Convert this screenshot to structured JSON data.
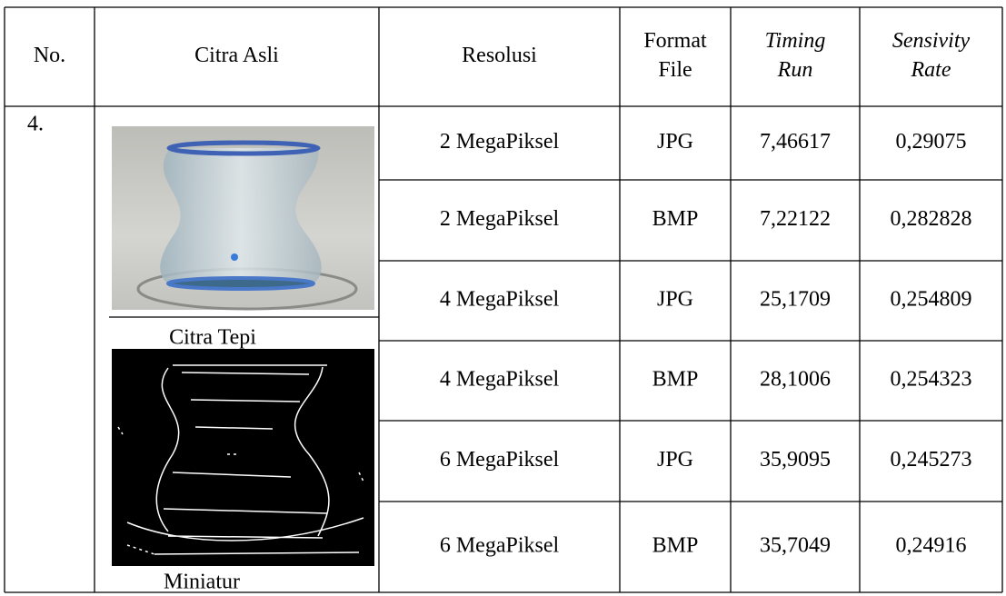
{
  "table": {
    "header": [
      [
        "No."
      ],
      [
        "Citra Asli"
      ],
      [
        "Resolusi"
      ],
      [
        "Format",
        "File"
      ],
      [
        "Timing",
        "Run"
      ],
      [
        "Sensivity",
        "Rate"
      ]
    ],
    "number": "4.",
    "edge_label": "Citra Tepi",
    "thumb_label": "Miniatur",
    "rows": [
      [
        "2 MegaPiksel",
        "JPG",
        "7,46617",
        "0,29075"
      ],
      [
        "2 MegaPiksel",
        "BMP",
        "7,22122",
        "0,282828"
      ],
      [
        "4 MegaPiksel",
        "JPG",
        "25,1709",
        "0,254809"
      ],
      [
        "4 MegaPiksel",
        "BMP",
        "28,1006",
        "0,254323"
      ],
      [
        "6 MegaPiksel",
        "JPG",
        "35,9095",
        "0,245273"
      ],
      [
        "6 MegaPiksel",
        "BMP",
        "35,7049",
        "0,24916"
      ]
    ]
  }
}
